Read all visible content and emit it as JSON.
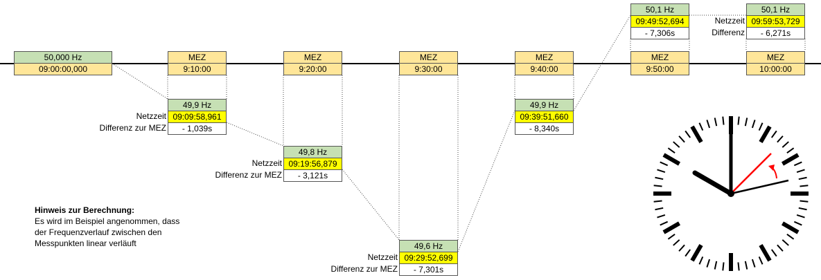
{
  "start": {
    "freq": "50,000 Hz",
    "time": "09:00:00,000"
  },
  "marks": [
    {
      "label": "MEZ",
      "time": "9:10:00"
    },
    {
      "label": "MEZ",
      "time": "9:20:00"
    },
    {
      "label": "MEZ",
      "time": "9:30:00"
    },
    {
      "label": "MEZ",
      "time": "9:40:00"
    },
    {
      "label": "MEZ",
      "time": "9:50:00"
    },
    {
      "label": "MEZ",
      "time": "10:00:00"
    }
  ],
  "points": [
    {
      "freq": "49,9 Hz",
      "netz_label": "Netzzeit",
      "netz": "09:09:58,961",
      "diff_label": "Differenz zur MEZ",
      "diff": "-  1,039s"
    },
    {
      "freq": "49,8 Hz",
      "netz_label": "Netzzeit",
      "netz": "09:19:56,879",
      "diff_label": "Differenz zur MEZ",
      "diff": "-  3,121s"
    },
    {
      "freq": "49,6 Hz",
      "netz_label": "Netzzeit",
      "netz": "09:29:52,699",
      "diff_label": "Differenz zur MEZ",
      "diff": "-  7,301s"
    },
    {
      "freq": "49,9 Hz",
      "netz_label": "",
      "netz": "09:39:51,660",
      "diff_label": "",
      "diff": "-  8,340s"
    },
    {
      "freq": "50,1 Hz",
      "netz_label": "",
      "netz": "09:49:52,694",
      "diff_label": "",
      "diff": "-  7,306s"
    },
    {
      "freq": "50,1 Hz",
      "netz_label": "Netzzeit",
      "netz": "09:59:53,729",
      "diff_label": "Differenz",
      "diff": "-  6,271s"
    }
  ],
  "note": {
    "heading": "Hinweis zur Berechnung:",
    "line1": "Es wird im Beispiel angenommen, dass",
    "line2": "der Frequenzverlauf zwischen den",
    "line3": "Messpunkten linear verläuft"
  },
  "colors": {
    "green": "#c6e0b4",
    "tan": "#ffe699",
    "yellow": "#ffff00",
    "red_hand": "#ff0000"
  },
  "clock": {
    "hour_hand": "10 o'clock",
    "minute_hand": "12 o'clock",
    "second_hand_black": "about 15 s",
    "second_hand_red": "about 7 s",
    "arrow": "red, counterclockwise"
  }
}
